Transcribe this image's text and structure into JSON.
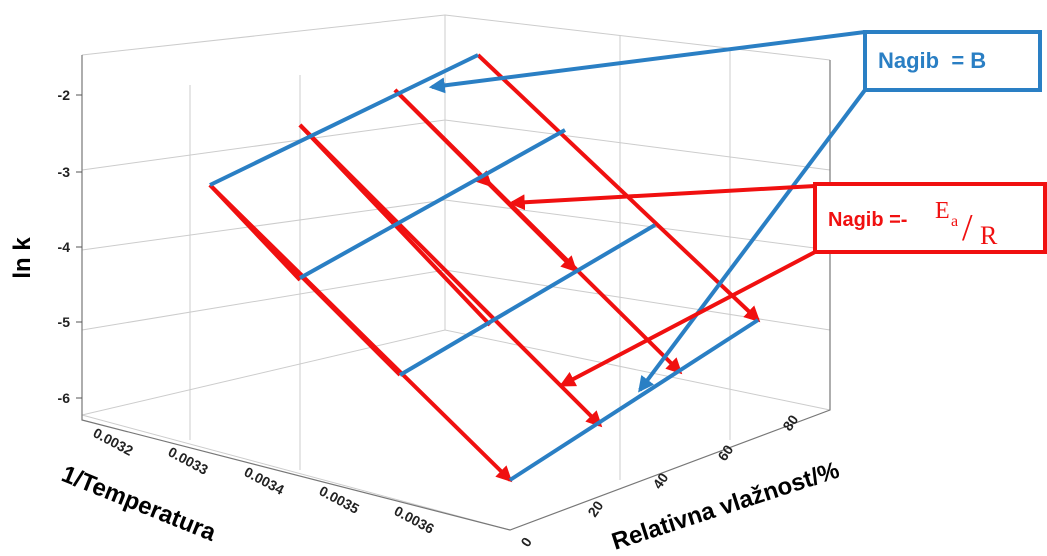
{
  "axes": {
    "z": {
      "title": "ln k",
      "ticks": [
        "-2",
        "-3",
        "-4",
        "-5",
        "-6"
      ]
    },
    "x": {
      "title": "1/Temperatura",
      "ticks": [
        "0.0032",
        "0.0033",
        "0.0034",
        "0.0035",
        "0.0036"
      ]
    },
    "y": {
      "title": "Relativna vlažnost/%",
      "ticks": [
        "0",
        "20",
        "40",
        "60",
        "80"
      ]
    }
  },
  "annotations": {
    "slope_b": "Nagib  = B",
    "slope_ea": {
      "prefix": "Nagib =-",
      "numerator": "E",
      "subscript": "a",
      "slash": "/",
      "denominator": "R"
    }
  }
}
